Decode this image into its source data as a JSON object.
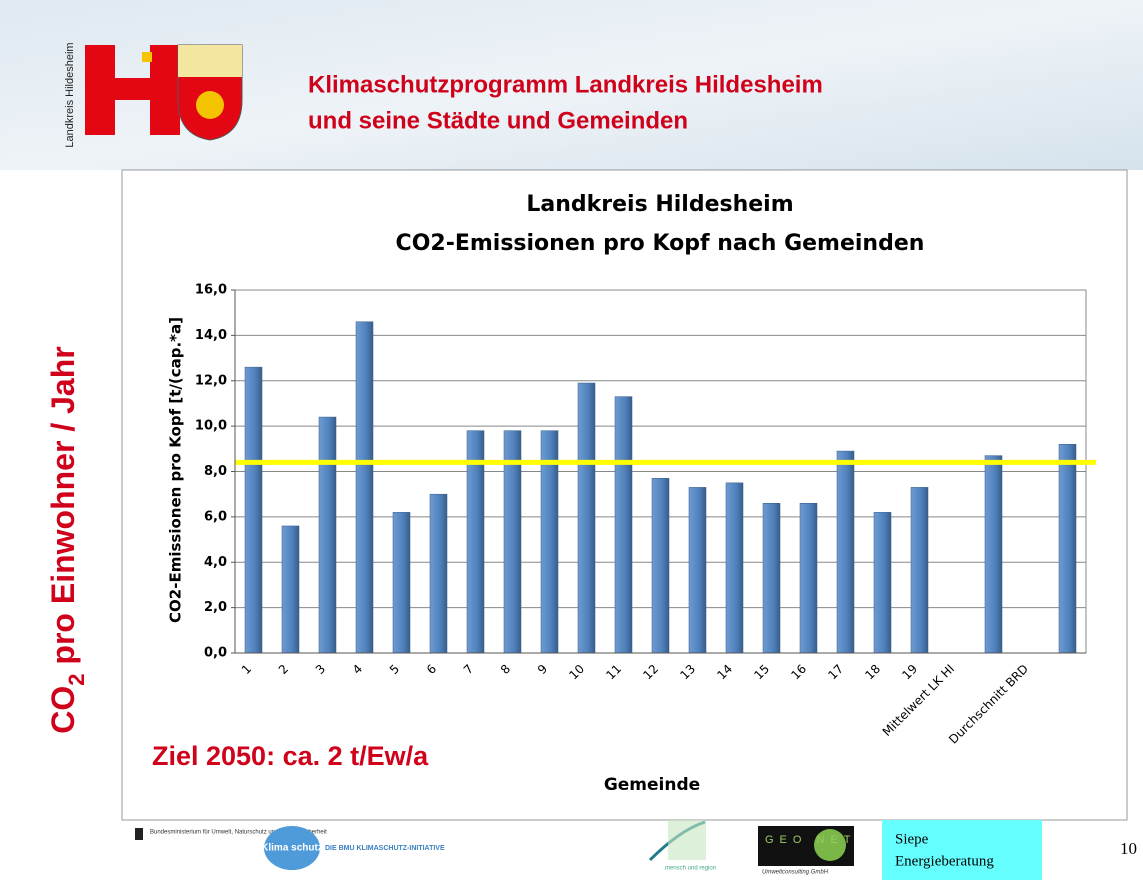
{
  "slide": {
    "logo_text": "Landkreis Hildesheim",
    "title_lines": [
      "Klimaschutzprogramm Landkreis Hildesheim",
      "und seine Städte und Gemeinden"
    ],
    "side_label": {
      "base": "CO",
      "sub": "2",
      "rest": " pro Einwohner / Jahr"
    },
    "footer": {
      "ministry": "Bundesministerium für Umwelt, Naturschutz und Reaktorsicherheit",
      "klima": "Klima schutz",
      "bmu": "DIE BMU KLIMASCHUTZ-INITIATIVE",
      "mensch": "mensch und region",
      "geonet": "GEO NET",
      "geonet_sub": "Umweltconsulting GmbH",
      "siepe": [
        "Siepe",
        "Energieberatung"
      ],
      "page": "10"
    }
  },
  "chart_data": {
    "type": "bar",
    "title_lines": [
      "Landkreis Hildesheim",
      "CO2-Emissionen pro Kopf nach Gemeinden"
    ],
    "y_label": "CO2-Emissionen pro Kopf [t/(cap.*a]",
    "x_label": "Gemeinde",
    "annotation": "Ziel 2050: ca. 2 t/Ew/a",
    "categories": [
      "1",
      "2",
      "3",
      "4",
      "5",
      "6",
      "7",
      "8",
      "9",
      "10",
      "11",
      "12",
      "13",
      "14",
      "15",
      "16",
      "17",
      "18",
      "19",
      "Mittelwert LK HI",
      null,
      "Durchschnitt BRD",
      null
    ],
    "values": [
      12.6,
      5.6,
      10.4,
      14.6,
      6.2,
      7.0,
      9.8,
      9.8,
      9.8,
      11.9,
      11.3,
      7.7,
      7.3,
      7.5,
      6.6,
      6.6,
      8.9,
      6.2,
      7.3,
      null,
      8.7,
      null,
      9.2
    ],
    "color": "#4f81bd",
    "reference_line": {
      "value": 8.4,
      "color": "#ffff00"
    },
    "ylim": [
      0,
      16
    ],
    "yticks": [
      {
        "value": 0,
        "label": "0,0"
      },
      {
        "value": 2,
        "label": "2,0"
      },
      {
        "value": 4,
        "label": "4,0"
      },
      {
        "value": 6,
        "label": "6,0"
      },
      {
        "value": 8,
        "label": "8,0"
      },
      {
        "value": 10,
        "label": "10,0"
      },
      {
        "value": 12,
        "label": "12,0"
      },
      {
        "value": 14,
        "label": "14,0"
      },
      {
        "value": 16,
        "label": "16,0"
      }
    ],
    "grid": true
  }
}
